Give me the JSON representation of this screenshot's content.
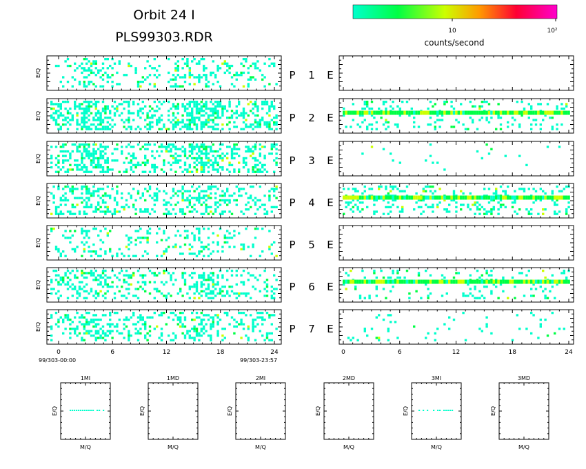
{
  "header": {
    "title_line1": "Orbit 24 I",
    "title_line2": "PLS99303.RDR"
  },
  "colorbar": {
    "colors": [
      "#00ffcc",
      "#00ff44",
      "#ccff00",
      "#ff9900",
      "#ff0033",
      "#ff00cc"
    ],
    "tick_labels": [
      "10",
      "10²"
    ],
    "label": "counts/second"
  },
  "panels": {
    "ylabel": "E/Q",
    "mid_labels": [
      {
        "p": "P",
        "n": "1",
        "e": "E"
      },
      {
        "p": "P",
        "n": "2",
        "e": "E"
      },
      {
        "p": "P",
        "n": "3",
        "e": "E"
      },
      {
        "p": "P",
        "n": "4",
        "e": "E"
      },
      {
        "p": "P",
        "n": "5",
        "e": "E"
      },
      {
        "p": "P",
        "n": "6",
        "e": "E"
      },
      {
        "p": "P",
        "n": "7",
        "e": "E"
      }
    ],
    "x_ticks": [
      "0",
      "6",
      "12",
      "18",
      "24"
    ],
    "start_label": "99/303-00:00",
    "end_label": "99/303-23:57"
  },
  "chart_data": {
    "type": "heatmap",
    "x_range": [
      0,
      24
    ],
    "x_ticks": [
      0,
      6,
      12,
      18,
      24
    ],
    "left_panels": [
      {
        "name": "P 1",
        "density": 0.32,
        "bands": []
      },
      {
        "name": "P 2",
        "density": 0.6,
        "bands": []
      },
      {
        "name": "P 3",
        "density": 0.55,
        "bands": []
      },
      {
        "name": "P 4",
        "density": 0.4,
        "bands": []
      },
      {
        "name": "P 5",
        "density": 0.22,
        "bands": []
      },
      {
        "name": "P 6",
        "density": 0.35,
        "bands": []
      },
      {
        "name": "P 7",
        "density": 0.38,
        "bands": []
      }
    ],
    "right_panels": [
      {
        "name": "E 1",
        "density": 0.0,
        "band_level": null
      },
      {
        "name": "E 2",
        "density": 0.18,
        "band_level": 0.35
      },
      {
        "name": "E 3",
        "density": 0.02,
        "band_level": null
      },
      {
        "name": "E 4",
        "density": 0.3,
        "band_level": 0.35
      },
      {
        "name": "E 5",
        "density": 0.0,
        "band_level": null
      },
      {
        "name": "E 6",
        "density": 0.18,
        "band_level": 0.35
      },
      {
        "name": "E 7",
        "density": 0.05,
        "band_level": null
      }
    ],
    "small_panels": [
      {
        "title": "1MI",
        "has_line": true
      },
      {
        "title": "1MD",
        "has_line": false
      },
      {
        "title": "2MI",
        "has_line": false
      },
      {
        "title": "2MD",
        "has_line": false
      },
      {
        "title": "3MI",
        "has_line": true
      },
      {
        "title": "3MD",
        "has_line": false
      }
    ],
    "small_xlabel": "M/Q",
    "small_ylabel": "E/Q"
  }
}
